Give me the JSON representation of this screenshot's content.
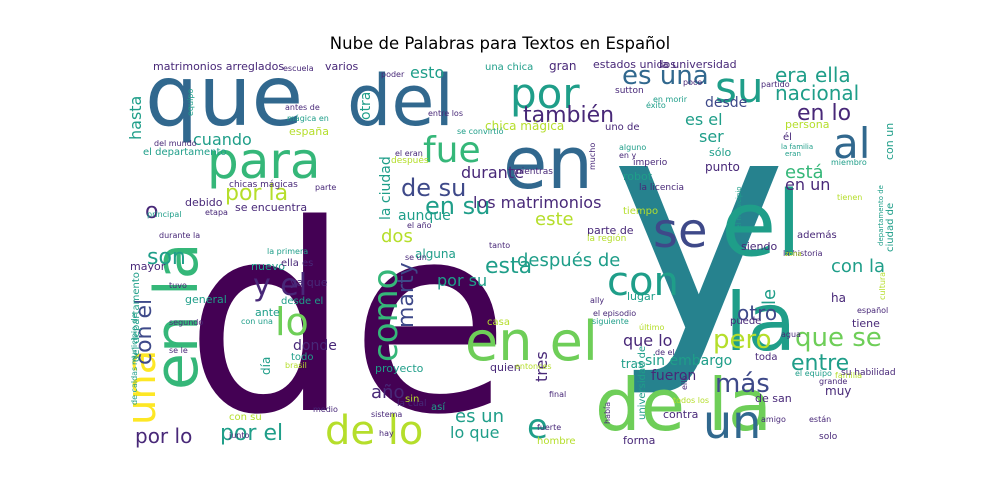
{
  "title": "Nube de Palabras para Textos en Español",
  "palette": {
    "dark_purple": "#440154",
    "purple": "#482878",
    "indigo": "#3e4989",
    "blue": "#31688e",
    "teal_blue": "#26828e",
    "teal": "#1f9e89",
    "green": "#35b779",
    "light_green": "#6ece58",
    "lime": "#b5de2b",
    "yellow": "#fde725"
  },
  "words": [
    {
      "text": "de",
      "color": "dark_purple"
    },
    {
      "text": "y",
      "color": "teal_blue"
    },
    {
      "text": "que",
      "color": "blue"
    },
    {
      "text": "del",
      "color": "blue"
    },
    {
      "text": "en",
      "color": "blue"
    },
    {
      "text": "en la",
      "color": "green"
    },
    {
      "text": "el",
      "color": "teal"
    },
    {
      "text": "la",
      "color": "teal"
    },
    {
      "text": "de la",
      "color": "light_green"
    },
    {
      "text": "en el",
      "color": "light_green"
    },
    {
      "text": "para",
      "color": "green"
    },
    {
      "text": "por",
      "color": "teal"
    },
    {
      "text": "su",
      "color": "teal"
    },
    {
      "text": "es una",
      "color": "blue"
    },
    {
      "text": "al",
      "color": "blue"
    },
    {
      "text": "se",
      "color": "indigo"
    },
    {
      "text": "con",
      "color": "teal"
    },
    {
      "text": "fue",
      "color": "green"
    },
    {
      "text": "como",
      "color": "green"
    },
    {
      "text": "lo",
      "color": "light_green"
    },
    {
      "text": "un",
      "color": "blue"
    },
    {
      "text": "una",
      "color": "yellow"
    },
    {
      "text": "de lo",
      "color": "lime"
    },
    {
      "text": "e",
      "color": "teal"
    },
    {
      "text": "y el",
      "color": "purple"
    },
    {
      "text": "también",
      "color": "purple"
    },
    {
      "text": "era",
      "color": "teal"
    },
    {
      "text": "ella",
      "color": "teal"
    },
    {
      "text": "nacional",
      "color": "teal"
    },
    {
      "text": "en lo",
      "color": "purple"
    },
    {
      "text": "está",
      "color": "green"
    },
    {
      "text": "de su",
      "color": "indigo"
    },
    {
      "text": "en su",
      "color": "teal"
    },
    {
      "text": "pero",
      "color": "lime"
    },
    {
      "text": "que se",
      "color": "light_green"
    },
    {
      "text": "más",
      "color": "indigo"
    },
    {
      "text": "entre",
      "color": "teal"
    },
    {
      "text": "por el",
      "color": "teal"
    },
    {
      "text": "por lo",
      "color": "purple"
    },
    {
      "text": "son",
      "color": "teal"
    },
    {
      "text": "esta",
      "color": "teal"
    },
    {
      "text": "marty",
      "color": "indigo"
    },
    {
      "text": "con el",
      "color": "indigo"
    },
    {
      "text": "o",
      "color": "purple"
    },
    {
      "text": "por la",
      "color": "lime"
    },
    {
      "text": "durante",
      "color": "purple"
    },
    {
      "text": "los matrimonios",
      "color": "purple"
    },
    {
      "text": "este",
      "color": "lime"
    },
    {
      "text": "dos",
      "color": "lime"
    },
    {
      "text": "después de",
      "color": "teal"
    },
    {
      "text": "por su",
      "color": "teal"
    },
    {
      "text": "con la",
      "color": "teal"
    },
    {
      "text": "otro",
      "color": "indigo"
    },
    {
      "text": "le",
      "color": "teal"
    },
    {
      "text": "que lo",
      "color": "purple"
    },
    {
      "text": "sin embargo",
      "color": "teal"
    },
    {
      "text": "año",
      "color": "purple"
    },
    {
      "text": "es un",
      "color": "teal"
    },
    {
      "text": "lo que",
      "color": "teal"
    },
    {
      "text": "tres",
      "color": "purple"
    },
    {
      "text": "fueron",
      "color": "purple"
    },
    {
      "text": "hasta",
      "color": "teal"
    },
    {
      "text": "otra",
      "color": "teal"
    },
    {
      "text": "cuando",
      "color": "teal"
    },
    {
      "text": "esto",
      "color": "teal"
    },
    {
      "text": "desde",
      "color": "indigo"
    },
    {
      "text": "es el",
      "color": "teal"
    },
    {
      "text": "ser",
      "color": "teal"
    },
    {
      "text": "en un",
      "color": "purple"
    },
    {
      "text": "aunque",
      "color": "teal"
    },
    {
      "text": "la ciudad",
      "color": "teal"
    },
    {
      "text": "chica mágica",
      "color": "lime"
    },
    {
      "text": "matrimonios arreglados",
      "color": "purple"
    },
    {
      "text": "estados unidos",
      "color": "purple"
    },
    {
      "text": "la universidad",
      "color": "purple"
    },
    {
      "text": "una chica",
      "color": "teal"
    },
    {
      "text": "gran",
      "color": "purple"
    },
    {
      "text": "varios",
      "color": "purple"
    },
    {
      "text": "donde",
      "color": "purple"
    },
    {
      "text": "alguna",
      "color": "teal"
    },
    {
      "text": "nuevo",
      "color": "teal"
    },
    {
      "text": "ella es",
      "color": "purple"
    },
    {
      "text": "ya que",
      "color": "purple"
    },
    {
      "text": "desde el",
      "color": "teal"
    },
    {
      "text": "ante",
      "color": "teal"
    },
    {
      "text": "todo",
      "color": "teal"
    },
    {
      "text": "día",
      "color": "teal"
    },
    {
      "text": "general",
      "color": "teal"
    },
    {
      "text": "mayor",
      "color": "purple"
    },
    {
      "text": "debido",
      "color": "purple"
    },
    {
      "text": "se encuentra",
      "color": "purple"
    },
    {
      "text": "con su",
      "color": "lime"
    },
    {
      "text": "proyecto",
      "color": "teal"
    },
    {
      "text": "quien",
      "color": "purple"
    },
    {
      "text": "casa",
      "color": "lime"
    },
    {
      "text": "tras",
      "color": "teal"
    },
    {
      "text": "de san",
      "color": "purple"
    },
    {
      "text": "muy",
      "color": "purple"
    },
    {
      "text": "contra",
      "color": "purple"
    },
    {
      "text": "forma",
      "color": "purple"
    },
    {
      "text": "hombre",
      "color": "lime"
    },
    {
      "text": "sin",
      "color": "lime"
    },
    {
      "text": "así",
      "color": "teal"
    },
    {
      "text": "parte de",
      "color": "purple"
    },
    {
      "text": "punto",
      "color": "purple"
    },
    {
      "text": "sólo",
      "color": "teal"
    },
    {
      "text": "robot",
      "color": "teal"
    },
    {
      "text": "lugar",
      "color": "teal"
    },
    {
      "text": "además",
      "color": "purple"
    },
    {
      "text": "siendo",
      "color": "purple"
    },
    {
      "text": "ha",
      "color": "purple"
    },
    {
      "text": "tiene",
      "color": "purple"
    },
    {
      "text": "puede",
      "color": "purple"
    },
    {
      "text": "toda",
      "color": "purple"
    },
    {
      "text": "persona",
      "color": "lime"
    },
    {
      "text": "españa",
      "color": "lime"
    },
    {
      "text": "universidad de",
      "color": "teal"
    },
    {
      "text": "ciudad de",
      "color": "teal"
    },
    {
      "text": "con un",
      "color": "teal"
    },
    {
      "text": "el departamento",
      "color": "teal"
    },
    {
      "text": "del departamento",
      "color": "teal"
    },
    {
      "text": "chicas mágicas",
      "color": "purple"
    },
    {
      "text": "uno de",
      "color": "purple"
    },
    {
      "text": "la licencia",
      "color": "purple"
    },
    {
      "text": "imperio",
      "color": "purple"
    },
    {
      "text": "tiempo",
      "color": "lime"
    },
    {
      "text": "la región",
      "color": "lime"
    },
    {
      "text": "después",
      "color": "lime"
    },
    {
      "text": "mientras",
      "color": "purple"
    },
    {
      "text": "entonces",
      "color": "lime"
    },
    {
      "text": "siguiente",
      "color": "teal"
    },
    {
      "text": "último",
      "color": "lime"
    },
    {
      "text": "el equipo",
      "color": "teal"
    },
    {
      "text": "junto",
      "color": "purple"
    },
    {
      "text": "medio",
      "color": "purple"
    },
    {
      "text": "sistema",
      "color": "purple"
    },
    {
      "text": "hay",
      "color": "purple"
    },
    {
      "text": "la cual",
      "color": "purple"
    },
    {
      "text": "final",
      "color": "purple"
    },
    {
      "text": "fuerte",
      "color": "purple"
    },
    {
      "text": "había",
      "color": "purple"
    },
    {
      "text": "todos los",
      "color": "lime"
    },
    {
      "text": "grande",
      "color": "purple"
    },
    {
      "text": "familia",
      "color": "lime"
    },
    {
      "text": "amigo",
      "color": "purple"
    },
    {
      "text": "están",
      "color": "purple"
    },
    {
      "text": "solo",
      "color": "purple"
    },
    {
      "text": "agua",
      "color": "purple"
    },
    {
      "text": "su habilidad",
      "color": "purple"
    },
    {
      "text": "español",
      "color": "purple"
    },
    {
      "text": "cultura",
      "color": "lime"
    },
    {
      "text": "la historia",
      "color": "purple"
    },
    {
      "text": "zona",
      "color": "lime"
    },
    {
      "text": "departamento de",
      "color": "teal"
    },
    {
      "text": "miembro",
      "color": "teal"
    },
    {
      "text": "tienen",
      "color": "lime"
    },
    {
      "text": "él",
      "color": "purple"
    },
    {
      "text": "la familia",
      "color": "teal"
    },
    {
      "text": "eran",
      "color": "teal"
    },
    {
      "text": "el municipio",
      "color": "teal"
    },
    {
      "text": "partido",
      "color": "purple"
    },
    {
      "text": "éxito",
      "color": "teal"
    },
    {
      "text": "poco",
      "color": "purple"
    },
    {
      "text": "en morir",
      "color": "teal"
    },
    {
      "text": "entre los",
      "color": "purple"
    },
    {
      "text": "se convirtió",
      "color": "teal"
    },
    {
      "text": "mucho",
      "color": "purple"
    },
    {
      "text": "alguno",
      "color": "teal"
    },
    {
      "text": "en y",
      "color": "purple"
    },
    {
      "text": "el eran",
      "color": "purple"
    },
    {
      "text": "mágica en",
      "color": "teal"
    },
    {
      "text": "antes de",
      "color": "purple"
    },
    {
      "text": "equipo",
      "color": "teal"
    },
    {
      "text": "escuela",
      "color": "purple"
    },
    {
      "text": "poder",
      "color": "purple"
    },
    {
      "text": "sutton",
      "color": "purple"
    },
    {
      "text": "del mundo",
      "color": "purple"
    },
    {
      "text": "principal",
      "color": "teal"
    },
    {
      "text": "etapa",
      "color": "purple"
    },
    {
      "text": "durante la",
      "color": "purple"
    },
    {
      "text": "la primera",
      "color": "teal"
    },
    {
      "text": "tanto",
      "color": "purple"
    },
    {
      "text": "el año",
      "color": "purple"
    },
    {
      "text": "se un",
      "color": "purple"
    },
    {
      "text": "tuvo",
      "color": "purple"
    },
    {
      "text": "segundo",
      "color": "purple"
    },
    {
      "text": "con una",
      "color": "teal"
    },
    {
      "text": "se le",
      "color": "purple"
    },
    {
      "text": "municipio de",
      "color": "teal"
    },
    {
      "text": "de caldas",
      "color": "teal"
    },
    {
      "text": "brasil",
      "color": "lime"
    },
    {
      "text": "ally",
      "color": "purple"
    },
    {
      "text": "el episodio",
      "color": "purple"
    },
    {
      "text": "de el",
      "color": "purple"
    },
    {
      "text": "ello",
      "color": "purple"
    },
    {
      "text": "parte",
      "color": "purple"
    }
  ]
}
